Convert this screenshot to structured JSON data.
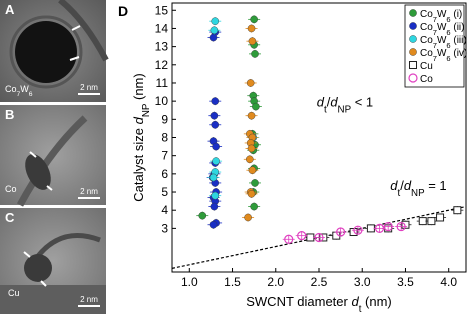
{
  "image_panels": [
    {
      "label": "A",
      "material": "Co7W6",
      "scale": "2 nm"
    },
    {
      "label": "B",
      "material": "Co",
      "scale": "2 nm"
    },
    {
      "label": "C",
      "material": "Cu",
      "scale": "2 nm"
    }
  ],
  "chart_data": {
    "type": "scatter",
    "panel_label": "D",
    "xlabel": [
      {
        "t": "SWCNT diameter "
      },
      {
        "t": "d",
        "italic": true
      },
      {
        "t": "t",
        "sub": true
      },
      {
        "t": " (nm)"
      }
    ],
    "ylabel": [
      {
        "t": "Catalyst size "
      },
      {
        "t": "d",
        "italic": true
      },
      {
        "t": "NP",
        "sub": true
      },
      {
        "t": " (nm)"
      }
    ],
    "xlim": [
      0.8,
      4.2
    ],
    "ylim": [
      0.6,
      15.4
    ],
    "xticks": [
      {
        "value": 1,
        "label": "1.0"
      },
      {
        "value": 1.5,
        "label": "1.5"
      },
      {
        "value": 2,
        "label": "2.0"
      },
      {
        "value": 2.5,
        "label": "2.5"
      },
      {
        "value": 3,
        "label": "3.0"
      },
      {
        "value": 3.5,
        "label": "3.5"
      },
      {
        "value": 4,
        "label": "4.0"
      }
    ],
    "yticks": [
      3,
      4,
      5,
      6,
      7,
      8,
      9,
      10,
      11,
      12,
      13,
      14,
      15
    ],
    "legend": "top-right",
    "series": [
      {
        "name": "Co7W6 (i)",
        "color": "#2e9b3a",
        "marker": "filled-circle",
        "x": [
          1.15,
          1.75,
          1.75,
          1.76,
          1.74,
          1.75,
          1.77,
          1.73,
          1.76,
          1.74,
          1.75,
          1.76,
          1.74,
          1.75
        ],
        "y": [
          3.7,
          14.5,
          13.1,
          12.6,
          10.3,
          10.0,
          9.7,
          8.2,
          7.6,
          7.3,
          6.3,
          5.5,
          5.0,
          4.2
        ]
      },
      {
        "name": "Co7W6 (ii)",
        "color": "#1a2fc4",
        "marker": "filled-circle",
        "x": [
          1.3,
          1.28,
          1.3,
          1.29,
          1.3,
          1.28,
          1.31,
          1.3,
          1.29,
          1.27,
          1.3,
          1.31,
          1.28,
          1.3,
          1.29,
          1.31,
          1.28
        ],
        "y": [
          13.8,
          13.5,
          10.0,
          9.2,
          8.7,
          7.8,
          7.5,
          6.6,
          6.0,
          5.8,
          5.5,
          5.0,
          4.7,
          4.5,
          4.2,
          3.3,
          3.2
        ]
      },
      {
        "name": "Co7W6 (iii)",
        "color": "#2ed6e0",
        "marker": "filled-circle",
        "x": [
          1.3,
          1.29,
          1.31,
          1.3,
          1.28,
          1.3,
          1.74
        ],
        "y": [
          14.4,
          13.9,
          6.7,
          6.1,
          5.8,
          4.8,
          8.0
        ]
      },
      {
        "name": "Co7W6 (iv)",
        "color": "#e08a1e",
        "marker": "filled-circle",
        "x": [
          1.72,
          1.73,
          1.71,
          1.72,
          1.7,
          1.73,
          1.71,
          1.72,
          1.7,
          1.73,
          1.71,
          1.72,
          1.68
        ],
        "y": [
          14.0,
          13.3,
          11.0,
          9.2,
          8.2,
          8.0,
          7.7,
          7.4,
          6.8,
          6.2,
          5.0,
          4.9,
          3.6
        ]
      },
      {
        "name": "Cu",
        "color": "#222222",
        "marker": "open-square",
        "x": [
          2.4,
          2.55,
          2.7,
          2.9,
          3.1,
          3.3,
          3.5,
          3.7,
          3.8,
          3.9,
          4.1
        ],
        "y": [
          2.5,
          2.5,
          2.6,
          2.8,
          3.0,
          3.0,
          3.2,
          3.4,
          3.4,
          3.6,
          4.0
        ]
      },
      {
        "name": "Co",
        "color": "#e040c0",
        "marker": "open-circle",
        "x": [
          2.15,
          2.3,
          2.5,
          2.75,
          2.95,
          3.2,
          3.3,
          3.45
        ],
        "y": [
          2.4,
          2.6,
          2.5,
          2.8,
          2.9,
          3.0,
          3.1,
          3.1
        ]
      }
    ],
    "reference_line": {
      "x": [
        0.8,
        4.2
      ],
      "y": [
        0.8,
        4.2
      ],
      "style": "dashed"
    },
    "annotations": [
      {
        "text": [
          {
            "t": "d",
            "italic": true
          },
          {
            "t": "t",
            "sub": true
          },
          {
            "t": "/"
          },
          {
            "t": "d",
            "italic": true
          },
          {
            "t": "NP",
            "sub": true
          },
          {
            "t": " < 1"
          }
        ],
        "x": 2.8,
        "y": 9.7
      },
      {
        "text": [
          {
            "t": "d",
            "italic": true
          },
          {
            "t": "t",
            "sub": true
          },
          {
            "t": "/"
          },
          {
            "t": "d",
            "italic": true
          },
          {
            "t": "NP",
            "sub": true
          },
          {
            "t": " = 1"
          }
        ],
        "x": 3.65,
        "y": 5.1
      }
    ]
  }
}
